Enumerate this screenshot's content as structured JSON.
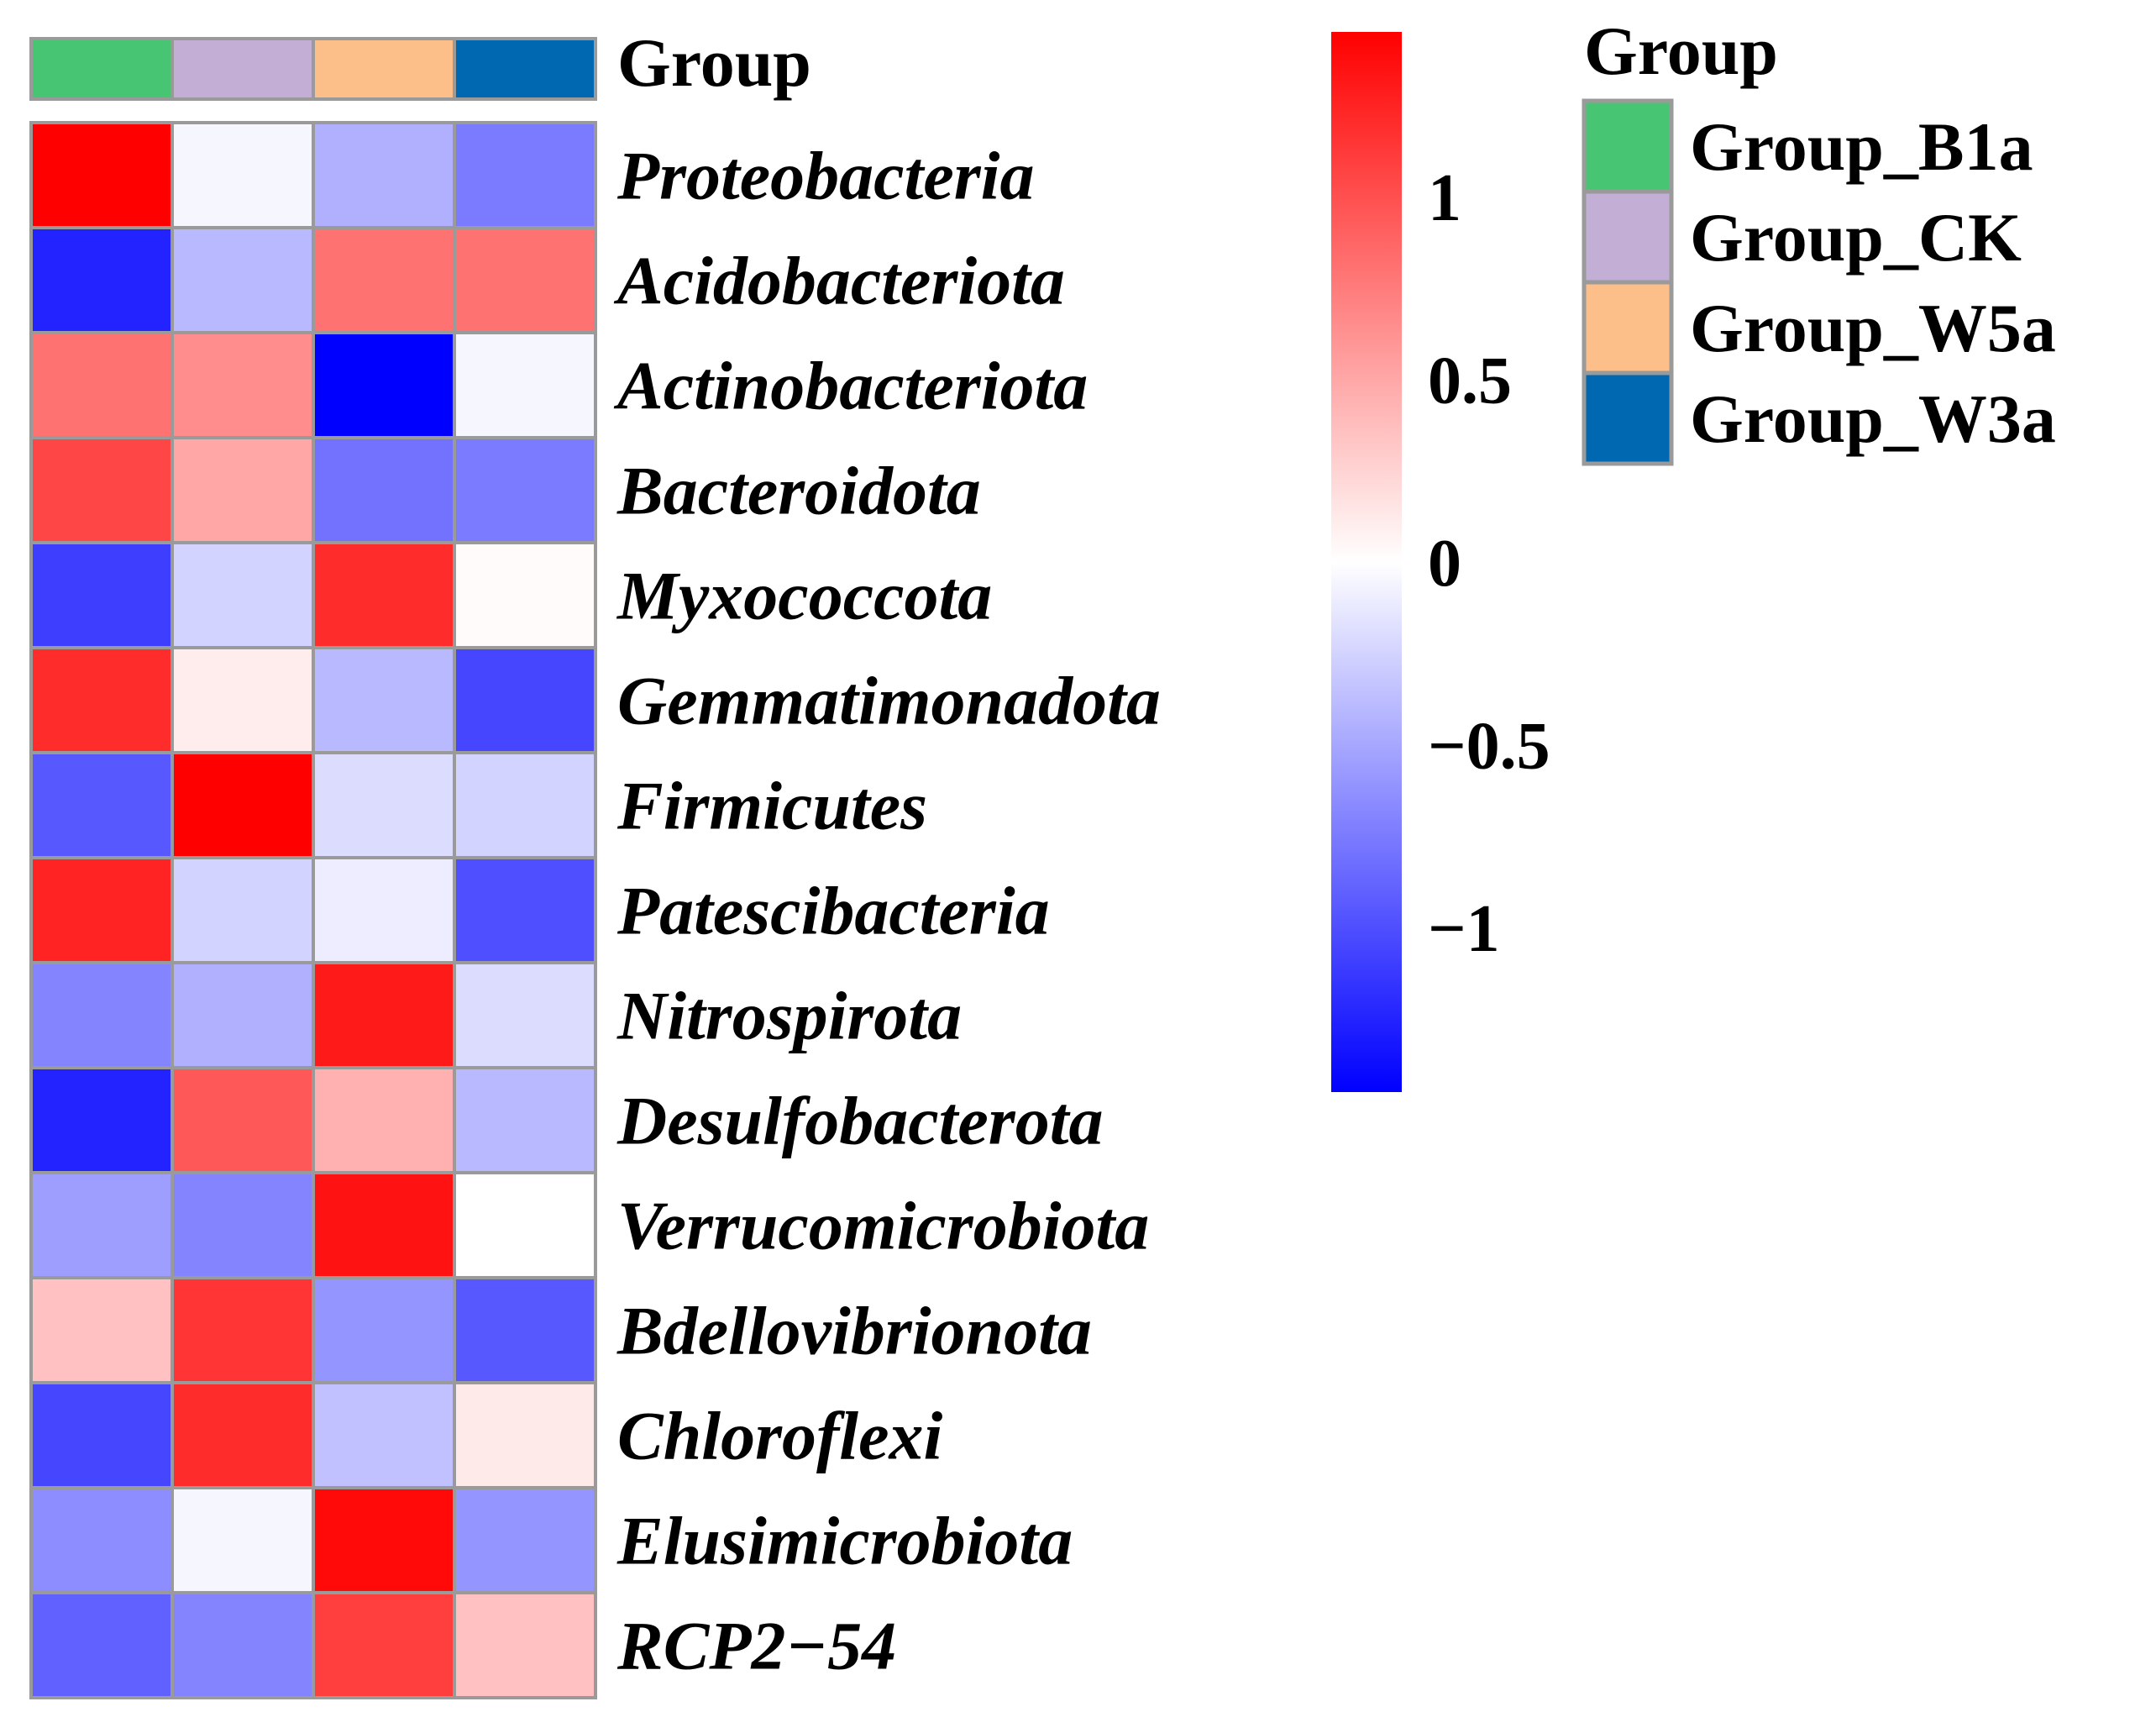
{
  "chart_data": {
    "type": "heatmap",
    "title": "",
    "columns": [
      "Group_B1a",
      "Group_CK",
      "Group_W5a",
      "Group_W3a"
    ],
    "rows": [
      "Proteobacteria",
      "Acidobacteriota",
      "Actinobacteriota",
      "Bacteroidota",
      "Myxococcota",
      "Gemmatimonadota",
      "Firmicutes",
      "Patescibacteria",
      "Nitrospirota",
      "Desulfobacterota",
      "Verrucomicrobiota",
      "Bdellovibrionota",
      "Chloroflexi",
      "Elusimicrobiota",
      "RCP2−54"
    ],
    "values": [
      [
        1.45,
        -0.05,
        -0.45,
        -0.75
      ],
      [
        -1.25,
        -0.4,
        0.8,
        0.8
      ],
      [
        0.8,
        0.65,
        -1.45,
        -0.05
      ],
      [
        1.05,
        0.5,
        -0.8,
        -0.75
      ],
      [
        -1.1,
        -0.25,
        1.2,
        0.02
      ],
      [
        1.2,
        0.1,
        -0.4,
        -1.05
      ],
      [
        -0.95,
        1.45,
        -0.2,
        -0.25
      ],
      [
        1.25,
        -0.25,
        -0.1,
        -1.0
      ],
      [
        -0.7,
        -0.45,
        1.3,
        -0.2
      ],
      [
        -1.25,
        0.95,
        0.45,
        -0.4
      ],
      [
        -0.55,
        -0.7,
        1.35,
        0.0
      ],
      [
        0.35,
        1.15,
        -0.6,
        -0.95
      ],
      [
        -1.05,
        1.2,
        -0.35,
        0.12
      ],
      [
        -0.65,
        -0.05,
        1.4,
        -0.6
      ],
      [
        -0.9,
        -0.7,
        1.1,
        0.35
      ]
    ],
    "color_scale": {
      "min": -1.45,
      "max": 1.45,
      "low_color": "#0000ff",
      "mid_color": "#ffffff",
      "high_color": "#ff0000",
      "ticks": [
        1,
        0.5,
        0,
        -0.5,
        -1
      ],
      "tick_labels": [
        "1",
        "0.5",
        "0",
        "−0.5",
        "−1"
      ]
    },
    "annotation": {
      "title": "Group",
      "colors": [
        "#48c572",
        "#c3aed5",
        "#fcbf8a",
        "#0068b0"
      ]
    },
    "legend": {
      "title": "Group",
      "items": [
        "Group_B1a",
        "Group_CK",
        "Group_W5a",
        "Group_W3a"
      ],
      "colors": [
        "#48c572",
        "#c3aed5",
        "#fcbf8a",
        "#0068b0"
      ]
    },
    "cell_border_color": "#9a9a9a"
  }
}
